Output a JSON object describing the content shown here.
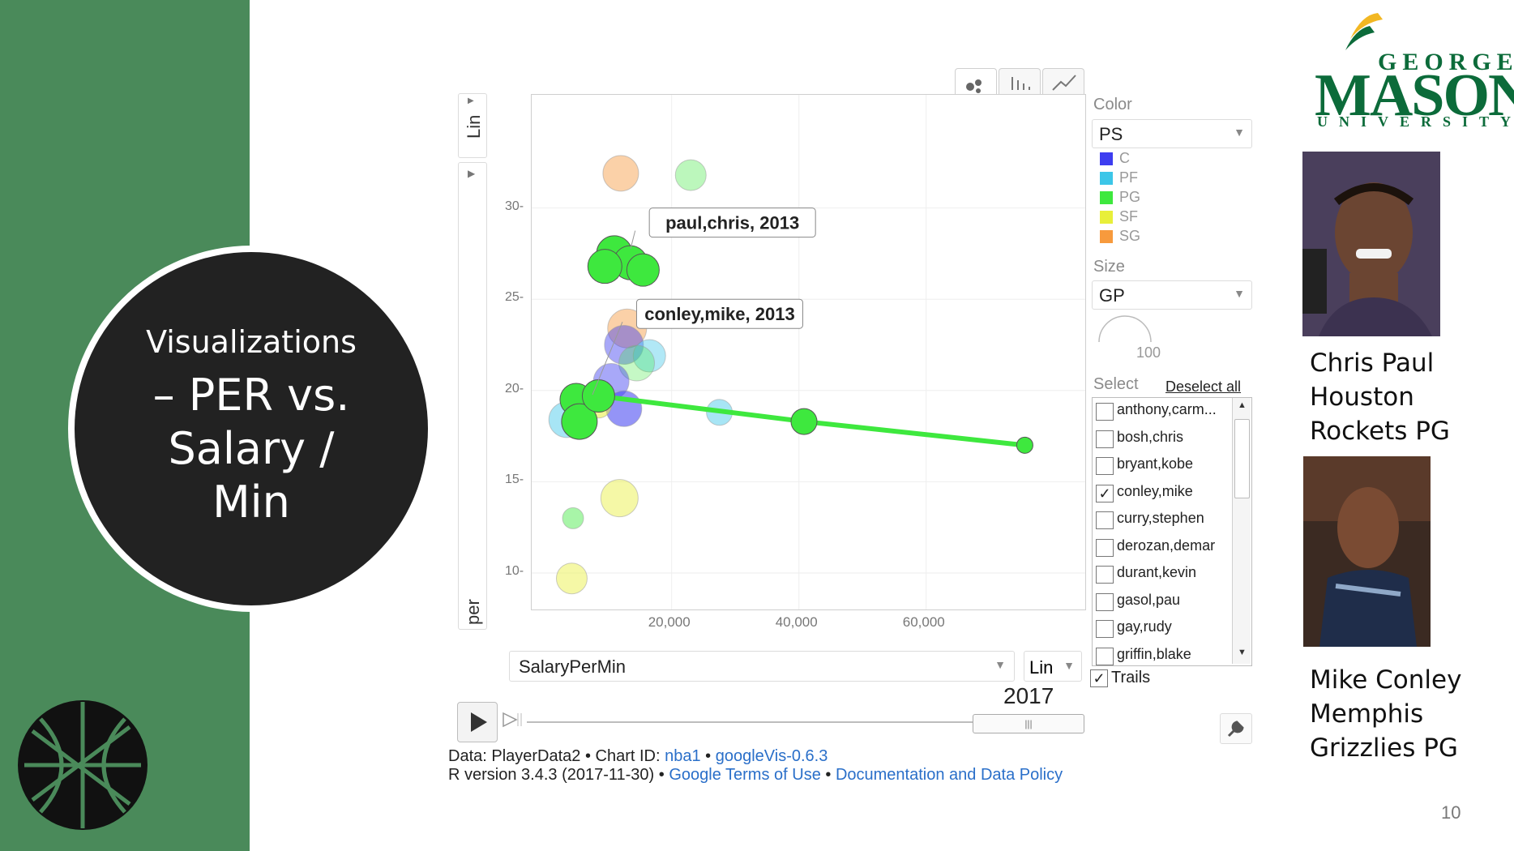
{
  "slide": {
    "title_line1": "Visualizations",
    "title_line2": "– PER vs.",
    "title_line3": "Salary /",
    "title_line4": "Min",
    "page_number": "10"
  },
  "logo": {
    "line1": "GEORGE",
    "line2": "MASON",
    "line3": "UNIVERSITY"
  },
  "captions": {
    "player1": [
      "Chris Paul",
      "Houston",
      "Rockets PG"
    ],
    "player2": [
      "Mike Conley",
      "Memphis",
      "Grizzlies PG"
    ]
  },
  "motion_chart": {
    "tabs": [
      "bubble-icon",
      "bar-icon",
      "line-icon"
    ],
    "y_axis_scale": "Lin",
    "y_axis_var": "per",
    "x_axis_var": "SalaryPerMin",
    "x_axis_scale": "Lin",
    "year": "2017",
    "slider_grip": "|||",
    "color_label": "Color",
    "color_value": "PS",
    "size_label": "Size",
    "size_value": "GP",
    "size_legend_value": "100",
    "select_label": "Select",
    "deselect_all": "Deselect all",
    "trails_label": "Trails",
    "trails_checked": true,
    "players": [
      {
        "name": "anthony,carm...",
        "checked": false
      },
      {
        "name": "bosh,chris",
        "checked": false
      },
      {
        "name": "bryant,kobe",
        "checked": false
      },
      {
        "name": "conley,mike",
        "checked": true
      },
      {
        "name": "curry,stephen",
        "checked": false
      },
      {
        "name": "derozan,demar",
        "checked": false
      },
      {
        "name": "durant,kevin",
        "checked": false
      },
      {
        "name": "gasol,pau",
        "checked": false
      },
      {
        "name": "gay,rudy",
        "checked": false
      },
      {
        "name": "griffin,blake",
        "checked": false
      }
    ],
    "footer_line1_prefix": "Data: PlayerData2 • Chart ID: ",
    "footer_chart_id": "nba1",
    "footer_sep": " • ",
    "footer_googlevis": "googleVis-0.6.3",
    "footer_line2_prefix": "R version 3.4.3 (2017-11-30) • ",
    "footer_terms": "Google Terms of Use",
    "footer_sep2": " • ",
    "footer_policy": "Documentation and Data Policy"
  },
  "chart_data": {
    "type": "scatter",
    "x_ticks": [
      20000,
      40000,
      60000
    ],
    "x_tick_labels": [
      "20,000",
      "40,000",
      "60,000"
    ],
    "y_ticks": [
      10,
      15,
      20,
      25,
      30
    ],
    "y_tick_labels": [
      "10-",
      "15-",
      "20-",
      "25-",
      "30-"
    ],
    "xlim": [
      -2000,
      85000
    ],
    "ylim": [
      8.0,
      36.2
    ],
    "legend": [
      {
        "name": "C",
        "color": "#3d3df0"
      },
      {
        "name": "PF",
        "color": "#3cc6e8"
      },
      {
        "name": "PG",
        "color": "#3ee83e"
      },
      {
        "name": "SF",
        "color": "#e8ef3a"
      },
      {
        "name": "SG",
        "color": "#f79a3d"
      }
    ],
    "bubbles": [
      {
        "x": 12000,
        "y": 31.9,
        "r": 22,
        "pos": "SG",
        "alpha": 0.45
      },
      {
        "x": 23000,
        "y": 31.8,
        "r": 19,
        "pos": "PG",
        "alpha": 0.35
      },
      {
        "x": 13000,
        "y": 23.4,
        "r": 24,
        "pos": "SG",
        "alpha": 0.45
      },
      {
        "x": 12500,
        "y": 22.5,
        "r": 24,
        "pos": "C",
        "alpha": 0.45
      },
      {
        "x": 16500,
        "y": 21.9,
        "r": 20,
        "pos": "PF",
        "alpha": 0.4
      },
      {
        "x": 14500,
        "y": 21.5,
        "r": 22,
        "pos": "PG",
        "alpha": 0.3
      },
      {
        "x": 10500,
        "y": 20.5,
        "r": 22,
        "pos": "C",
        "alpha": 0.45
      },
      {
        "x": 12500,
        "y": 19.0,
        "r": 22,
        "pos": "C",
        "alpha": 0.55
      },
      {
        "x": 8500,
        "y": 19.2,
        "r": 16,
        "pos": "SF",
        "alpha": 0.55
      },
      {
        "x": 3500,
        "y": 18.4,
        "r": 22,
        "pos": "PF",
        "alpha": 0.45
      },
      {
        "x": 27500,
        "y": 18.8,
        "r": 16,
        "pos": "PF",
        "alpha": 0.45
      },
      {
        "x": 11800,
        "y": 14.1,
        "r": 23,
        "pos": "SF",
        "alpha": 0.45
      },
      {
        "x": 4500,
        "y": 13.0,
        "r": 13,
        "pos": "PG",
        "alpha": 0.45
      },
      {
        "x": 4300,
        "y": 9.7,
        "r": 19,
        "pos": "SF",
        "alpha": 0.45
      }
    ],
    "highlighted": [
      {
        "label": "paul,chris, 2013",
        "pos": "PG",
        "points": [
          {
            "x": 11000,
            "y": 27.5,
            "r": 22
          },
          {
            "x": 13500,
            "y": 27.0,
            "r": 21
          },
          {
            "x": 15500,
            "y": 26.6,
            "r": 20
          },
          {
            "x": 9500,
            "y": 26.8,
            "r": 21
          }
        ],
        "label_x": 27000,
        "label_y": 29.2
      },
      {
        "label": "conley,mike, 2013",
        "pos": "PG",
        "points": [
          {
            "x": 5000,
            "y": 19.5,
            "r": 20
          },
          {
            "x": 5500,
            "y": 18.3,
            "r": 22
          },
          {
            "x": 8500,
            "y": 19.7,
            "r": 20
          },
          {
            "x": 40800,
            "y": 18.3,
            "r": 16
          },
          {
            "x": 75500,
            "y": 17.0,
            "r": 10
          }
        ],
        "trail": [
          {
            "x": 8500,
            "y": 19.7
          },
          {
            "x": 40800,
            "y": 18.3
          },
          {
            "x": 75500,
            "y": 17.0
          }
        ],
        "label_x": 25000,
        "label_y": 24.2
      }
    ]
  }
}
